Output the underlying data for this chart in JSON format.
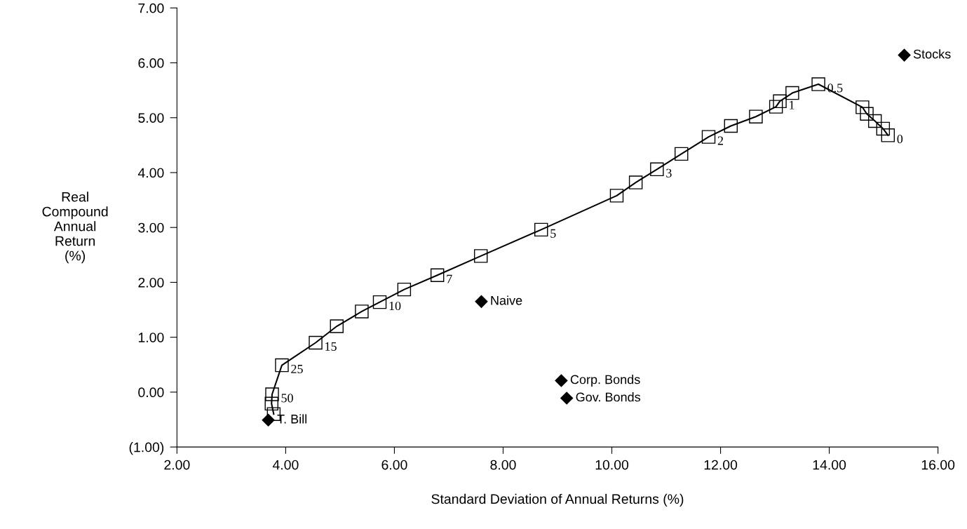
{
  "chart_data": {
    "type": "line",
    "xlabel": "Standard Deviation of Annual Returns (%)",
    "ylabel": "Real\nCompound\nAnnual\nReturn\n(%)",
    "xlim": [
      2,
      16
    ],
    "ylim": [
      -1,
      7
    ],
    "xticks": [
      {
        "value": 2,
        "label": "2.00"
      },
      {
        "value": 4,
        "label": "4.00"
      },
      {
        "value": 6,
        "label": "6.00"
      },
      {
        "value": 8,
        "label": "8.00"
      },
      {
        "value": 10,
        "label": "10.00"
      },
      {
        "value": 12,
        "label": "12.00"
      },
      {
        "value": 14,
        "label": "14.00"
      },
      {
        "value": 16,
        "label": "16.00"
      }
    ],
    "yticks": [
      {
        "value": -1,
        "label": "(1.00)"
      },
      {
        "value": 0,
        "label": "0.00"
      },
      {
        "value": 1,
        "label": "1.00"
      },
      {
        "value": 2,
        "label": "2.00"
      },
      {
        "value": 3,
        "label": "3.00"
      },
      {
        "value": 4,
        "label": "4.00"
      },
      {
        "value": 5,
        "label": "5.00"
      },
      {
        "value": 6,
        "label": "6.00"
      },
      {
        "value": 7,
        "label": "7.00"
      }
    ],
    "grid": false,
    "legend": false,
    "series": [
      {
        "color": "#000000",
        "marker": "square",
        "line_style": "solid",
        "x": [
          3.78,
          3.74,
          3.75,
          3.93,
          4.55,
          4.94,
          5.4,
          5.73,
          6.18,
          6.79,
          7.59,
          8.7,
          10.09,
          10.44,
          10.83,
          11.28,
          11.78,
          12.19,
          12.65,
          13.02,
          13.09,
          13.32,
          13.8,
          14.61,
          14.69,
          14.84,
          14.99,
          15.08
        ],
        "values": [
          -0.4,
          -0.21,
          -0.04,
          0.49,
          0.9,
          1.2,
          1.47,
          1.64,
          1.87,
          2.13,
          2.48,
          2.96,
          3.58,
          3.82,
          4.06,
          4.34,
          4.65,
          4.85,
          5.02,
          5.2,
          5.3,
          5.45,
          5.61,
          5.19,
          5.07,
          4.94,
          4.8,
          4.68
        ]
      },
      {
        "type": "scatter",
        "color": "#000000",
        "marker": "diamond",
        "x": [
          15.38,
          7.6,
          9.07,
          9.17,
          3.68
        ],
        "values": [
          6.14,
          1.65,
          0.21,
          -0.11,
          -0.51
        ]
      }
    ],
    "annotations": [
      {
        "text": "50",
        "x": 3.75,
        "y": -0.04
      },
      {
        "text": "25",
        "x": 3.93,
        "y": 0.49
      },
      {
        "text": "15",
        "x": 4.55,
        "y": 0.9
      },
      {
        "text": "10",
        "x": 5.73,
        "y": 1.64
      },
      {
        "text": "7",
        "x": 6.79,
        "y": 2.13
      },
      {
        "text": "5",
        "x": 8.7,
        "y": 2.96
      },
      {
        "text": "3",
        "x": 10.83,
        "y": 4.06
      },
      {
        "text": "2",
        "x": 11.78,
        "y": 4.65
      },
      {
        "text": "1",
        "x": 13.09,
        "y": 5.3
      },
      {
        "text": "0.5",
        "x": 13.8,
        "y": 5.61
      },
      {
        "text": "0",
        "x": 15.08,
        "y": 4.68
      },
      {
        "text": "Stocks",
        "x": 15.38,
        "y": 6.14
      },
      {
        "text": "Naive",
        "x": 7.6,
        "y": 1.65
      },
      {
        "text": "Corp. Bonds",
        "x": 9.07,
        "y": 0.21
      },
      {
        "text": "Gov. Bonds",
        "x": 9.17,
        "y": -0.11
      },
      {
        "text": "T. Bill",
        "x": 3.68,
        "y": -0.51
      }
    ]
  }
}
